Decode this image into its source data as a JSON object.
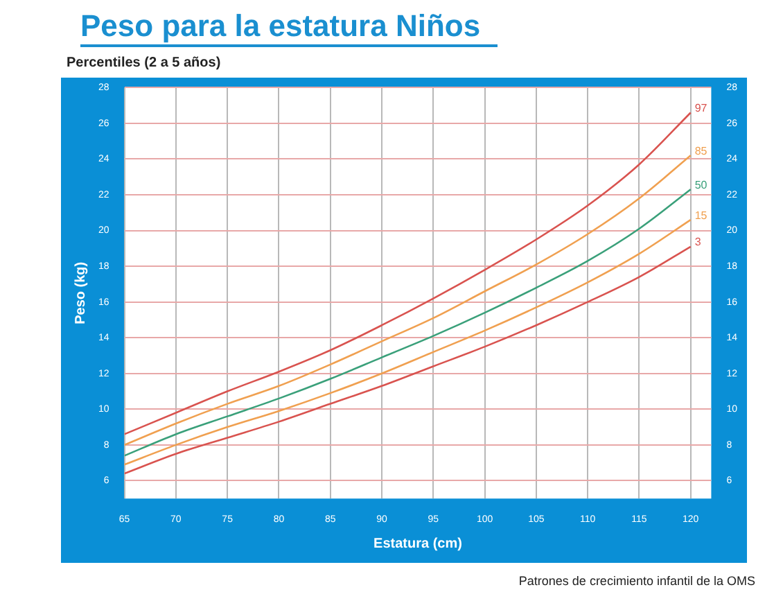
{
  "chart_data": {
    "type": "line",
    "title": "Peso para la estatura Niños",
    "subtitle": "Percentiles (2 a 5 años)",
    "xlabel": "Estatura (cm)",
    "ylabel": "Peso (kg)",
    "annotations": [
      "Patrones de crecimiento infantil de la OMS"
    ],
    "x": [
      65,
      70,
      75,
      80,
      85,
      90,
      95,
      100,
      105,
      110,
      115,
      120
    ],
    "series": [
      {
        "name": "97",
        "color": "#d9534f",
        "values": [
          8.6,
          9.8,
          11.0,
          12.1,
          13.3,
          14.7,
          16.2,
          17.8,
          19.5,
          21.4,
          23.7,
          26.6
        ]
      },
      {
        "name": "85",
        "color": "#f0a050",
        "values": [
          8.0,
          9.2,
          10.3,
          11.3,
          12.5,
          13.8,
          15.1,
          16.6,
          18.1,
          19.8,
          21.8,
          24.2
        ]
      },
      {
        "name": "50",
        "color": "#3aa07a",
        "values": [
          7.4,
          8.6,
          9.6,
          10.6,
          11.7,
          12.9,
          14.1,
          15.4,
          16.8,
          18.3,
          20.1,
          22.3
        ]
      },
      {
        "name": "15",
        "color": "#f0a050",
        "values": [
          6.9,
          8.0,
          9.0,
          9.9,
          10.9,
          12.0,
          13.2,
          14.4,
          15.7,
          17.1,
          18.7,
          20.6
        ]
      },
      {
        "name": "3",
        "color": "#d9534f",
        "values": [
          6.4,
          7.5,
          8.4,
          9.3,
          10.3,
          11.3,
          12.4,
          13.5,
          14.7,
          16.0,
          17.4,
          19.1
        ]
      }
    ],
    "xlim": [
      65,
      122
    ],
    "xticks": [
      65,
      70,
      75,
      80,
      85,
      90,
      95,
      100,
      105,
      110,
      115,
      120
    ],
    "ylim": [
      5,
      28
    ],
    "yticks": [
      6,
      8,
      10,
      12,
      14,
      16,
      18,
      20,
      22,
      24,
      26,
      28
    ],
    "y2lim": [
      5,
      28
    ],
    "y2ticks": [
      6,
      8,
      10,
      12,
      14,
      16,
      18,
      20,
      22,
      24,
      26,
      28
    ],
    "grid": true,
    "legend": false,
    "marker": "none",
    "line_style": "solid"
  }
}
